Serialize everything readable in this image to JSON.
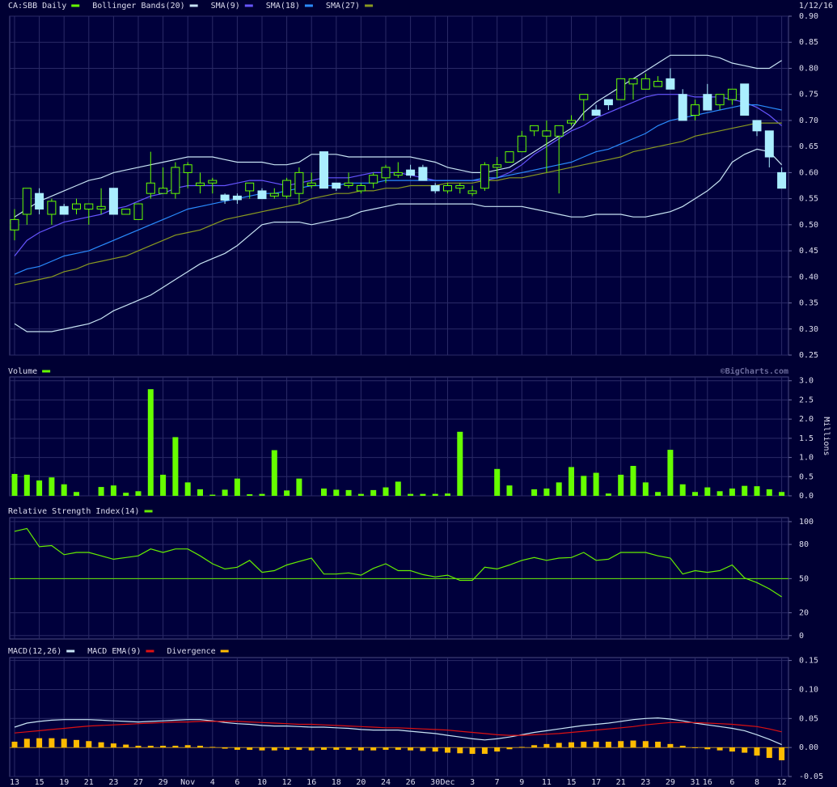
{
  "chart_data": [
    {
      "type": "candlestick",
      "title": "CA:SBB Daily",
      "date": "1/12/16",
      "color_up": "#66ff00",
      "color_down": "#aaeeff",
      "open": [
        0.49,
        0.52,
        0.56,
        0.52,
        0.535,
        0.53,
        0.53,
        0.53,
        0.57,
        0.52,
        0.51,
        0.56,
        0.56,
        0.56,
        0.6,
        0.575,
        0.58,
        0.557,
        0.555,
        0.565,
        0.565,
        0.555,
        0.555,
        0.56,
        0.575,
        0.64,
        0.58,
        0.575,
        0.565,
        0.58,
        0.59,
        0.595,
        0.605,
        0.61,
        0.575,
        0.565,
        0.57,
        0.56,
        0.57,
        0.61,
        0.62,
        0.64,
        0.68,
        0.67,
        0.67,
        0.695,
        0.74,
        0.72,
        0.74,
        0.74,
        0.77,
        0.76,
        0.765,
        0.78,
        0.75,
        0.71,
        0.75,
        0.73,
        0.74,
        0.77,
        0.7,
        0.68,
        0.6
      ],
      "high": [
        0.53,
        0.57,
        0.57,
        0.55,
        0.54,
        0.55,
        0.54,
        0.57,
        0.57,
        0.53,
        0.54,
        0.64,
        0.61,
        0.62,
        0.62,
        0.6,
        0.59,
        0.56,
        0.56,
        0.58,
        0.57,
        0.57,
        0.59,
        0.61,
        0.6,
        0.64,
        0.58,
        0.6,
        0.58,
        0.6,
        0.615,
        0.62,
        0.615,
        0.615,
        0.58,
        0.58,
        0.58,
        0.575,
        0.62,
        0.63,
        0.64,
        0.68,
        0.69,
        0.7,
        0.69,
        0.71,
        0.75,
        0.73,
        0.74,
        0.78,
        0.78,
        0.79,
        0.785,
        0.8,
        0.76,
        0.74,
        0.77,
        0.75,
        0.76,
        0.77,
        0.7,
        0.68,
        0.61
      ],
      "low": [
        0.47,
        0.5,
        0.52,
        0.5,
        0.52,
        0.52,
        0.5,
        0.52,
        0.52,
        0.52,
        0.51,
        0.55,
        0.56,
        0.55,
        0.57,
        0.56,
        0.56,
        0.54,
        0.54,
        0.55,
        0.55,
        0.55,
        0.55,
        0.54,
        0.57,
        0.57,
        0.565,
        0.57,
        0.56,
        0.57,
        0.58,
        0.59,
        0.59,
        0.585,
        0.56,
        0.56,
        0.56,
        0.555,
        0.565,
        0.59,
        0.62,
        0.64,
        0.67,
        0.6,
        0.56,
        0.69,
        0.7,
        0.71,
        0.72,
        0.74,
        0.74,
        0.76,
        0.765,
        0.76,
        0.7,
        0.7,
        0.72,
        0.72,
        0.73,
        0.71,
        0.67,
        0.61,
        0.57
      ],
      "close": [
        0.51,
        0.57,
        0.53,
        0.545,
        0.52,
        0.54,
        0.54,
        0.535,
        0.52,
        0.53,
        0.54,
        0.58,
        0.57,
        0.61,
        0.615,
        0.58,
        0.585,
        0.547,
        0.548,
        0.58,
        0.55,
        0.56,
        0.585,
        0.6,
        0.58,
        0.57,
        0.57,
        0.58,
        0.575,
        0.595,
        0.61,
        0.6,
        0.595,
        0.585,
        0.565,
        0.575,
        0.575,
        0.565,
        0.615,
        0.615,
        0.64,
        0.67,
        0.69,
        0.68,
        0.69,
        0.7,
        0.75,
        0.71,
        0.73,
        0.78,
        0.78,
        0.78,
        0.775,
        0.76,
        0.7,
        0.73,
        0.72,
        0.75,
        0.76,
        0.71,
        0.68,
        0.63,
        0.57
      ],
      "bands": {
        "name": "Bollinger Bands(20)",
        "color": "#c8e4f4",
        "upper": [
          0.515,
          0.53,
          0.545,
          0.555,
          0.565,
          0.575,
          0.585,
          0.59,
          0.6,
          0.605,
          0.61,
          0.615,
          0.62,
          0.625,
          0.63,
          0.63,
          0.63,
          0.625,
          0.62,
          0.62,
          0.62,
          0.615,
          0.615,
          0.62,
          0.635,
          0.635,
          0.635,
          0.63,
          0.63,
          0.63,
          0.63,
          0.63,
          0.63,
          0.625,
          0.62,
          0.61,
          0.605,
          0.6,
          0.6,
          0.605,
          0.61,
          0.625,
          0.64,
          0.655,
          0.67,
          0.685,
          0.715,
          0.735,
          0.75,
          0.765,
          0.78,
          0.795,
          0.81,
          0.825,
          0.825,
          0.825,
          0.825,
          0.82,
          0.81,
          0.805,
          0.8,
          0.8,
          0.815
        ],
        "lower": [
          0.31,
          0.295,
          0.295,
          0.295,
          0.3,
          0.305,
          0.31,
          0.32,
          0.335,
          0.345,
          0.355,
          0.365,
          0.38,
          0.395,
          0.41,
          0.425,
          0.435,
          0.445,
          0.46,
          0.48,
          0.5,
          0.505,
          0.505,
          0.505,
          0.5,
          0.505,
          0.51,
          0.515,
          0.525,
          0.53,
          0.535,
          0.54,
          0.54,
          0.54,
          0.54,
          0.54,
          0.54,
          0.54,
          0.535,
          0.535,
          0.535,
          0.535,
          0.53,
          0.525,
          0.52,
          0.515,
          0.515,
          0.52,
          0.52,
          0.52,
          0.515,
          0.515,
          0.52,
          0.525,
          0.535,
          0.55,
          0.565,
          0.585,
          0.62,
          0.635,
          0.645,
          0.64,
          0.615
        ]
      },
      "series": [
        {
          "name": "SMA(9)",
          "color": "#6655ff",
          "values": [
            0.44,
            0.47,
            0.485,
            0.495,
            0.505,
            0.51,
            0.515,
            0.52,
            0.53,
            0.535,
            0.545,
            0.555,
            0.56,
            0.57,
            0.575,
            0.575,
            0.575,
            0.575,
            0.58,
            0.585,
            0.585,
            0.58,
            0.575,
            0.58,
            0.585,
            0.59,
            0.59,
            0.59,
            0.595,
            0.6,
            0.6,
            0.6,
            0.595,
            0.59,
            0.585,
            0.585,
            0.585,
            0.585,
            0.585,
            0.59,
            0.6,
            0.615,
            0.635,
            0.65,
            0.665,
            0.68,
            0.69,
            0.705,
            0.715,
            0.725,
            0.735,
            0.745,
            0.75,
            0.75,
            0.75,
            0.745,
            0.745,
            0.745,
            0.74,
            0.735,
            0.725,
            0.71,
            0.69
          ]
        },
        {
          "name": "SMA(18)",
          "color": "#2a8cff",
          "values": [
            0.405,
            0.415,
            0.42,
            0.43,
            0.44,
            0.445,
            0.45,
            0.46,
            0.47,
            0.48,
            0.49,
            0.5,
            0.51,
            0.52,
            0.53,
            0.535,
            0.54,
            0.545,
            0.55,
            0.555,
            0.56,
            0.56,
            0.565,
            0.57,
            0.575,
            0.575,
            0.575,
            0.58,
            0.58,
            0.58,
            0.585,
            0.585,
            0.585,
            0.585,
            0.585,
            0.585,
            0.585,
            0.585,
            0.59,
            0.59,
            0.595,
            0.6,
            0.605,
            0.61,
            0.615,
            0.62,
            0.63,
            0.64,
            0.645,
            0.655,
            0.665,
            0.675,
            0.69,
            0.7,
            0.705,
            0.71,
            0.715,
            0.72,
            0.725,
            0.73,
            0.73,
            0.725,
            0.72
          ]
        },
        {
          "name": "SMA(27)",
          "color": "#8a9a20",
          "values": [
            0.385,
            0.39,
            0.395,
            0.4,
            0.41,
            0.415,
            0.425,
            0.43,
            0.435,
            0.44,
            0.45,
            0.46,
            0.47,
            0.48,
            0.485,
            0.49,
            0.5,
            0.51,
            0.515,
            0.52,
            0.525,
            0.53,
            0.535,
            0.54,
            0.55,
            0.555,
            0.56,
            0.56,
            0.565,
            0.565,
            0.57,
            0.57,
            0.575,
            0.575,
            0.575,
            0.58,
            0.58,
            0.58,
            0.585,
            0.585,
            0.59,
            0.59,
            0.595,
            0.6,
            0.605,
            0.61,
            0.615,
            0.62,
            0.625,
            0.63,
            0.64,
            0.645,
            0.65,
            0.655,
            0.66,
            0.67,
            0.675,
            0.68,
            0.685,
            0.69,
            0.695,
            0.695,
            0.695
          ]
        }
      ],
      "ylim": [
        0.25,
        0.9
      ],
      "yticks": [
        {
          "value": 0.25,
          "label": "0.25"
        },
        {
          "value": 0.3,
          "label": "0.30"
        },
        {
          "value": 0.35,
          "label": "0.35"
        },
        {
          "value": 0.4,
          "label": "0.40"
        },
        {
          "value": 0.45,
          "label": "0.45"
        },
        {
          "value": 0.5,
          "label": "0.50"
        },
        {
          "value": 0.55,
          "label": "0.55"
        },
        {
          "value": 0.6,
          "label": "0.60"
        },
        {
          "value": 0.65,
          "label": "0.65"
        },
        {
          "value": 0.7,
          "label": "0.70"
        },
        {
          "value": 0.75,
          "label": "0.75"
        },
        {
          "value": 0.8,
          "label": "0.80"
        },
        {
          "value": 0.85,
          "label": "0.85"
        },
        {
          "value": 0.9,
          "label": "0.90"
        }
      ],
      "grid": true
    },
    {
      "type": "bar",
      "title": "Volume",
      "ylabel": "Millions",
      "watermark": "©BigCharts.com",
      "color": "#66ff00",
      "values": [
        0.57,
        0.55,
        0.4,
        0.48,
        0.3,
        0.1,
        0,
        0.23,
        0.27,
        0.08,
        0.12,
        2.78,
        0.55,
        1.53,
        0.35,
        0.17,
        0.03,
        0.16,
        0.45,
        0.04,
        0.05,
        1.19,
        0.14,
        0.45,
        0,
        0.19,
        0.16,
        0.15,
        0.05,
        0.15,
        0.22,
        0.37,
        0.05,
        0.05,
        0.05,
        0.06,
        1.67,
        0,
        0,
        0.7,
        0.27,
        0,
        0.17,
        0.19,
        0.35,
        0.75,
        0.52,
        0.6,
        0.06,
        0.55,
        0.78,
        0.35,
        0.1,
        1.2,
        0.3,
        0.1,
        0.22,
        0.12,
        0.19,
        0.26,
        0.25,
        0.17,
        0.1
      ],
      "ylim": [
        0,
        3.1
      ],
      "yticks": [
        {
          "value": 0,
          "label": "0.0"
        },
        {
          "value": 0.5,
          "label": "0.5"
        },
        {
          "value": 1,
          "label": "1.0"
        },
        {
          "value": 1.5,
          "label": "1.5"
        },
        {
          "value": 2,
          "label": "2.0"
        },
        {
          "value": 2.5,
          "label": "2.5"
        },
        {
          "value": 3,
          "label": "3.0"
        }
      ],
      "grid": true
    },
    {
      "type": "line",
      "title": "Relative Strength Index(14)",
      "color": "#66ee00",
      "ref_line": 50,
      "values": [
        91.5,
        94,
        78,
        79,
        71,
        73,
        73,
        70,
        67,
        68.5,
        70,
        76,
        73,
        76,
        76,
        70,
        63,
        58.5,
        60,
        66,
        55.5,
        57,
        62,
        65,
        68,
        54,
        54,
        55,
        53,
        59,
        63,
        57,
        57,
        53.5,
        51.5,
        53,
        48.5,
        48.5,
        60,
        58.5,
        62,
        66,
        68.5,
        66,
        68,
        68.5,
        73,
        66,
        67,
        73,
        73,
        73,
        70,
        68,
        54,
        57,
        55.5,
        57,
        62,
        50.5,
        46.5,
        41,
        34
      ],
      "ylim": [
        -3,
        103.5
      ],
      "yticks": [
        0,
        20,
        50,
        80,
        100
      ],
      "grid": true
    },
    {
      "type": "macd",
      "categories": [
        "13",
        null,
        "15",
        null,
        "19",
        null,
        "21",
        null,
        "23",
        null,
        "27",
        null,
        "29",
        null,
        "Nov",
        null,
        "4",
        null,
        "6",
        null,
        "10",
        null,
        "12",
        null,
        "16",
        null,
        "18",
        null,
        "20",
        null,
        "24",
        null,
        "26",
        null,
        "30",
        "Dec",
        null,
        "3",
        null,
        "7",
        null,
        "9",
        null,
        "11",
        null,
        "15",
        null,
        "17",
        null,
        "21",
        null,
        "23",
        null,
        "29",
        null,
        "31",
        "16",
        null,
        "6",
        null,
        "8",
        null,
        "12"
      ],
      "series": [
        {
          "name": "MACD(12,26)",
          "color": "#c8e4f4",
          "values": [
            0.035,
            0.042,
            0.045,
            0.047,
            0.048,
            0.048,
            0.048,
            0.047,
            0.046,
            0.045,
            0.044,
            0.045,
            0.046,
            0.047,
            0.048,
            0.048,
            0.046,
            0.043,
            0.041,
            0.04,
            0.038,
            0.037,
            0.037,
            0.036,
            0.035,
            0.035,
            0.034,
            0.033,
            0.031,
            0.03,
            0.03,
            0.03,
            0.028,
            0.026,
            0.024,
            0.021,
            0.018,
            0.015,
            0.013,
            0.015,
            0.018,
            0.022,
            0.026,
            0.029,
            0.032,
            0.035,
            0.038,
            0.04,
            0.042,
            0.045,
            0.048,
            0.05,
            0.051,
            0.049,
            0.046,
            0.042,
            0.039,
            0.036,
            0.033,
            0.029,
            0.022,
            0.014,
            0.005
          ]
        },
        {
          "name": "MACD EMA(9)",
          "color": "#dd1111",
          "values": [
            0.025,
            0.027,
            0.029,
            0.031,
            0.033,
            0.035,
            0.037,
            0.038,
            0.039,
            0.04,
            0.041,
            0.042,
            0.043,
            0.044,
            0.044,
            0.045,
            0.045,
            0.045,
            0.045,
            0.044,
            0.043,
            0.042,
            0.041,
            0.04,
            0.04,
            0.039,
            0.038,
            0.037,
            0.036,
            0.035,
            0.034,
            0.034,
            0.033,
            0.032,
            0.031,
            0.03,
            0.028,
            0.026,
            0.024,
            0.022,
            0.021,
            0.021,
            0.022,
            0.023,
            0.024,
            0.026,
            0.028,
            0.03,
            0.032,
            0.034,
            0.036,
            0.039,
            0.041,
            0.043,
            0.043,
            0.043,
            0.042,
            0.041,
            0.04,
            0.038,
            0.036,
            0.032,
            0.027
          ]
        },
        {
          "name": "Divergence",
          "color": "#ffbb00",
          "bars": true,
          "values": [
            0.01,
            0.015,
            0.016,
            0.016,
            0.015,
            0.013,
            0.011,
            0.009,
            0.007,
            0.005,
            0.003,
            0.003,
            0.003,
            0.003,
            0.004,
            0.003,
            0.001,
            -0.002,
            -0.004,
            -0.004,
            -0.005,
            -0.005,
            -0.004,
            -0.004,
            -0.005,
            -0.004,
            -0.004,
            -0.004,
            -0.005,
            -0.005,
            -0.004,
            -0.004,
            -0.005,
            -0.006,
            -0.007,
            -0.009,
            -0.01,
            -0.011,
            -0.011,
            -0.007,
            -0.003,
            0.001,
            0.004,
            0.006,
            0.008,
            0.009,
            0.01,
            0.01,
            0.01,
            0.011,
            0.012,
            0.011,
            0.01,
            0.006,
            0.003,
            -0.001,
            -0.003,
            -0.005,
            -0.007,
            -0.009,
            -0.014,
            -0.018,
            -0.022
          ]
        }
      ],
      "ylim": [
        -0.05,
        0.155
      ],
      "yticks": [
        {
          "value": -0.05,
          "label": "-0.05"
        },
        {
          "value": 0,
          "label": "0.00"
        },
        {
          "value": 0.05,
          "label": "0.05"
        },
        {
          "value": 0.1,
          "label": "0.10"
        },
        {
          "value": 0.15,
          "label": "0.15"
        }
      ],
      "grid": true
    }
  ]
}
